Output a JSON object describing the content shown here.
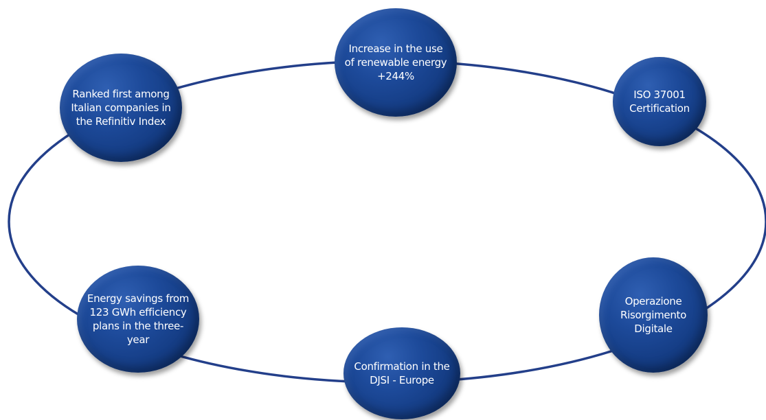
{
  "diagram": {
    "ring_color": "#233f8a",
    "node_color": "#1a4796",
    "nodes": {
      "top": "Increase in the use of renewable energy +244%",
      "top_left": "Ranked first among Italian companies in the Refinitiv Index",
      "right": "ISO 37001 Certification",
      "bottom_left": "Energy savings from 123 GWh efficiency plans in the three-year",
      "bottom_right": "Operazione Risorgimento Digitale",
      "bottom": "Confirmation in the DJSI - Europe"
    }
  }
}
